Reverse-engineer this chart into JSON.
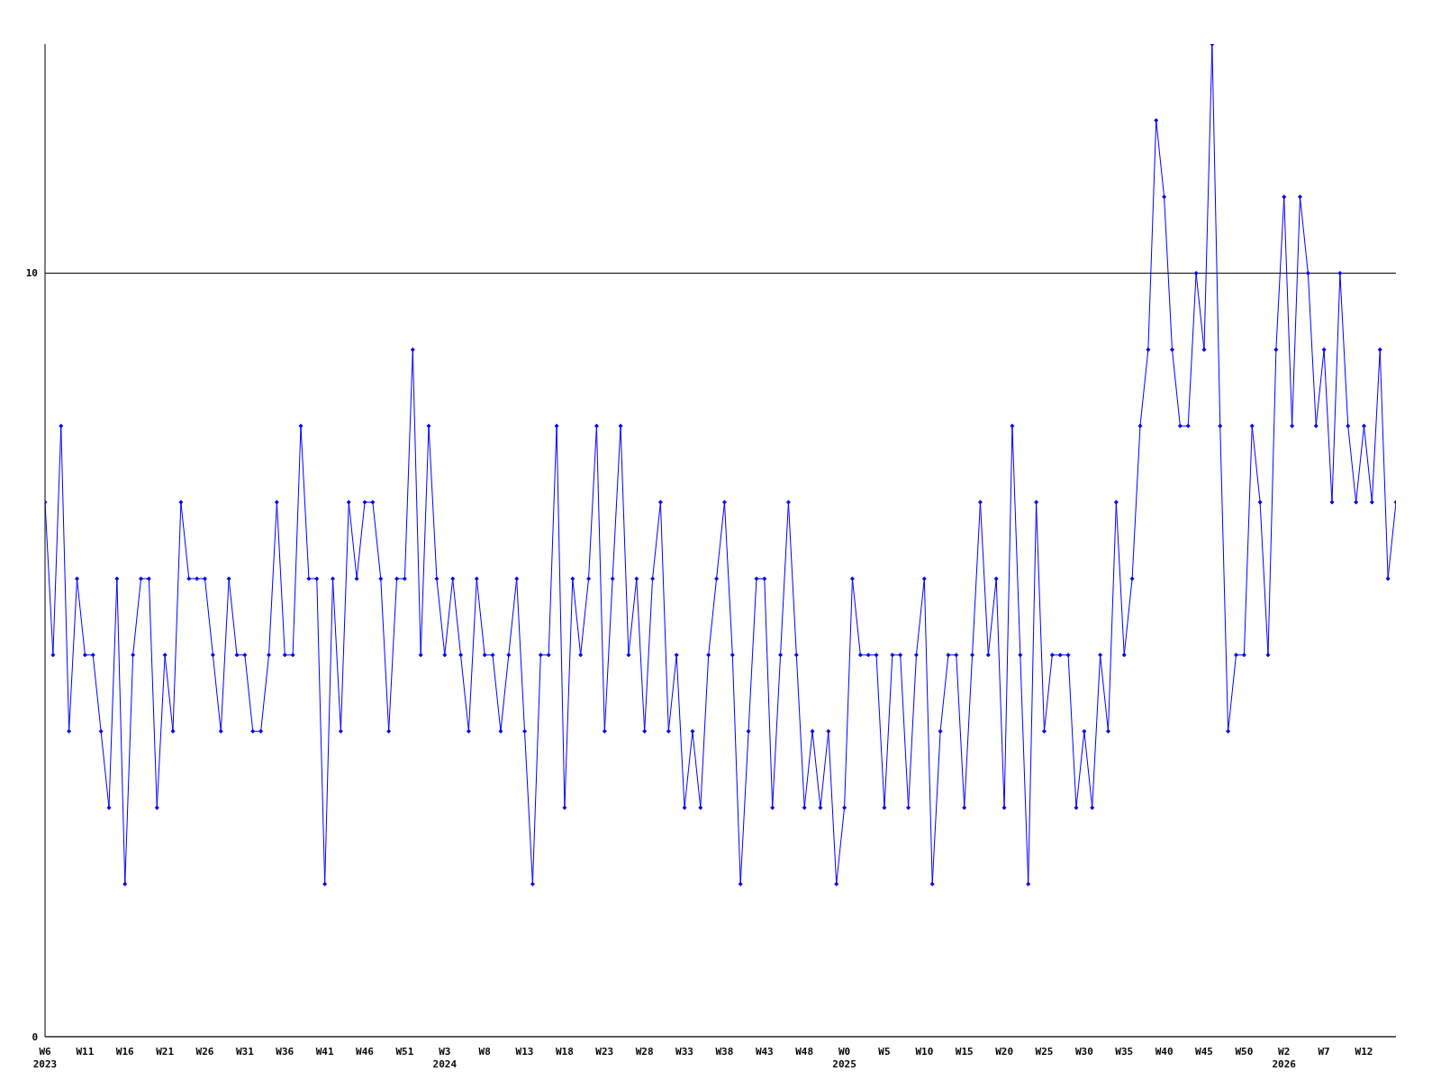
{
  "chart_data": {
    "type": "line",
    "categories": [
      "W6\n2023",
      null,
      null,
      null,
      null,
      "W11",
      null,
      null,
      null,
      null,
      "W16",
      null,
      null,
      null,
      null,
      "W21",
      null,
      null,
      null,
      null,
      "W26",
      null,
      null,
      null,
      null,
      "W31",
      null,
      null,
      null,
      null,
      "W36",
      null,
      null,
      null,
      null,
      "W41",
      null,
      null,
      null,
      null,
      "W46",
      null,
      null,
      null,
      null,
      "W51",
      null,
      null,
      null,
      null,
      "W3\n2024",
      null,
      null,
      null,
      null,
      "W8",
      null,
      null,
      null,
      null,
      "W13",
      null,
      null,
      null,
      null,
      "W18",
      null,
      null,
      null,
      null,
      "W23",
      null,
      null,
      null,
      null,
      "W28",
      null,
      null,
      null,
      null,
      "W33",
      null,
      null,
      null,
      null,
      "W38",
      null,
      null,
      null,
      null,
      "W43",
      null,
      null,
      null,
      null,
      "W48",
      null,
      null,
      null,
      null,
      "W0\n2025",
      null,
      null,
      null,
      null,
      "W5",
      null,
      null,
      null,
      null,
      "W10",
      null,
      null,
      null,
      null,
      "W15",
      null,
      null,
      null,
      null,
      "W20",
      null,
      null,
      null,
      null,
      "W25",
      null,
      null,
      null,
      null,
      "W30",
      null,
      null,
      null,
      null,
      "W35",
      null,
      null,
      null,
      null,
      "W40",
      null,
      null,
      null,
      null,
      "W45",
      null,
      null,
      null,
      null,
      "W50",
      null,
      null,
      null,
      null,
      "W2\n2026",
      null,
      null,
      null,
      null,
      "W7",
      null,
      null,
      null,
      null,
      "W12",
      null,
      null,
      null,
      null
    ],
    "series": [
      {
        "color": "#0000ff",
        "values": [
          7,
          5,
          8,
          4,
          6,
          5,
          5,
          4,
          3,
          6,
          2,
          5,
          6,
          6,
          3,
          5,
          4,
          7,
          6,
          6,
          6,
          5,
          4,
          6,
          5,
          5,
          4,
          4,
          5,
          7,
          5,
          5,
          8,
          6,
          6,
          2,
          6,
          4,
          7,
          6,
          7,
          7,
          6,
          4,
          6,
          6,
          9,
          5,
          8,
          6,
          5,
          6,
          5,
          4,
          6,
          5,
          5,
          4,
          5,
          6,
          4,
          2,
          5,
          5,
          8,
          3,
          6,
          5,
          6,
          8,
          4,
          6,
          8,
          5,
          6,
          4,
          6,
          7,
          4,
          5,
          3,
          4,
          3,
          5,
          6,
          7,
          5,
          2,
          4,
          6,
          6,
          3,
          5,
          7,
          5,
          3,
          4,
          3,
          4,
          2,
          3,
          6,
          5,
          5,
          5,
          3,
          5,
          5,
          3,
          5,
          6,
          2,
          4,
          5,
          5,
          3,
          5,
          7,
          5,
          6,
          3,
          8,
          5,
          2,
          7,
          4,
          5,
          5,
          5,
          3,
          4,
          3,
          5,
          4,
          7,
          5,
          6,
          8,
          9,
          12,
          11,
          9,
          8,
          8,
          10,
          9,
          13,
          8,
          4,
          5,
          5,
          8,
          7,
          5,
          9,
          11,
          8,
          11,
          10,
          8,
          9,
          7,
          10,
          8,
          7,
          8,
          7,
          9,
          6,
          7
        ]
      }
    ],
    "ylim": [
      0,
      13
    ],
    "yticks": [
      0,
      10
    ],
    "grid": "y",
    "legend": false,
    "marker": "diamond",
    "line_style": "solid"
  }
}
